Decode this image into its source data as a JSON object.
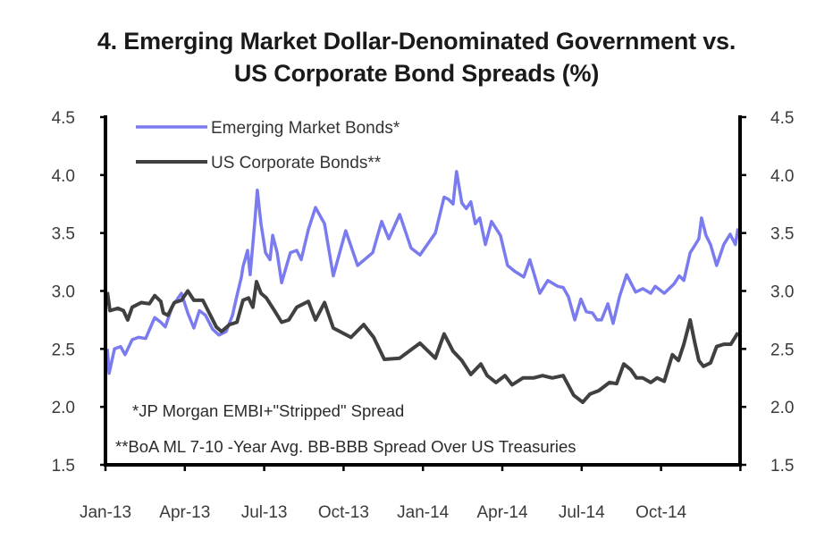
{
  "chart_data": {
    "type": "line",
    "title": "4. Emerging Market Dollar-Denominated Government vs.\nUS Corporate Bond Spreads (%)",
    "title_lines": [
      "4. Emerging Market Dollar-Denominated Government vs.",
      "US Corporate Bond Spreads (%)"
    ],
    "xlabel": "",
    "ylabel": "",
    "x_unit": "months since Jan-13",
    "x_ticks": [
      0,
      3,
      6,
      9,
      12,
      15,
      18,
      21,
      24
    ],
    "x_tick_labels": [
      "Jan-13",
      "Apr-13",
      "Jul-13",
      "Oct-13",
      "Jan-14",
      "Apr-14",
      "Jul-14",
      "Oct-14",
      ""
    ],
    "xlim": [
      0,
      24
    ],
    "ylim": [
      1.5,
      4.5
    ],
    "y_ticks": [
      1.5,
      2.0,
      2.5,
      3.0,
      3.5,
      4.0,
      4.5
    ],
    "y_tick_labels": [
      "1.5",
      "2.0",
      "2.5",
      "3.0",
      "3.5",
      "4.0",
      "4.5"
    ],
    "y_right_ticks": [
      1.5,
      2.0,
      2.5,
      3.0,
      3.5,
      4.0,
      4.5
    ],
    "y_right_tick_labels": [
      "1.5",
      "2.0",
      "2.5",
      "3.0",
      "3.5",
      "4.0",
      "4.5"
    ],
    "grid": false,
    "legend_position": "top-left",
    "series": [
      {
        "name": "Emerging Market Bonds*",
        "color": "#7b7bf0",
        "x": [
          0.07,
          0.14,
          0.34,
          0.57,
          0.74,
          1.01,
          1.25,
          1.52,
          1.69,
          1.86,
          2.09,
          2.26,
          2.53,
          2.87,
          3.11,
          3.34,
          3.55,
          3.78,
          4.05,
          4.29,
          4.56,
          4.8,
          4.97,
          5.14,
          5.2,
          5.37,
          5.47,
          5.64,
          5.74,
          5.88,
          6.05,
          6.22,
          6.32,
          6.49,
          6.66,
          6.82,
          6.99,
          7.23,
          7.4,
          7.67,
          7.94,
          8.28,
          8.61,
          9.08,
          9.53,
          10.1,
          10.44,
          10.71,
          11.12,
          11.55,
          11.89,
          12.47,
          12.8,
          12.97,
          13.14,
          13.27,
          13.47,
          13.64,
          13.81,
          13.98,
          14.15,
          14.36,
          14.59,
          14.93,
          15.2,
          15.47,
          15.81,
          16.04,
          16.42,
          16.72,
          17.09,
          17.3,
          17.5,
          17.74,
          17.97,
          18.18,
          18.41,
          18.58,
          18.75,
          18.99,
          19.19,
          19.43,
          19.7,
          20.04,
          20.31,
          20.61,
          20.78,
          21.12,
          21.49,
          21.69,
          21.86,
          22.1,
          22.27,
          22.43,
          22.53,
          22.7,
          22.87,
          23.1,
          23.37,
          23.61,
          23.81,
          23.91
        ],
        "values": [
          2.5,
          2.29,
          2.5,
          2.52,
          2.45,
          2.58,
          2.6,
          2.59,
          2.68,
          2.77,
          2.73,
          2.69,
          2.87,
          2.98,
          2.81,
          2.68,
          2.83,
          2.79,
          2.67,
          2.62,
          2.65,
          2.79,
          2.96,
          3.12,
          3.21,
          3.35,
          3.14,
          3.58,
          3.87,
          3.58,
          3.33,
          3.27,
          3.48,
          3.33,
          3.07,
          3.2,
          3.33,
          3.35,
          3.27,
          3.53,
          3.72,
          3.58,
          3.13,
          3.52,
          3.22,
          3.33,
          3.6,
          3.45,
          3.66,
          3.37,
          3.31,
          3.5,
          3.81,
          3.79,
          3.75,
          4.03,
          3.76,
          3.71,
          3.77,
          3.58,
          3.63,
          3.4,
          3.6,
          3.48,
          3.22,
          3.17,
          3.12,
          3.27,
          2.98,
          3.09,
          3.04,
          3.03,
          2.95,
          2.75,
          2.93,
          2.82,
          2.81,
          2.75,
          2.75,
          2.89,
          2.72,
          2.95,
          3.14,
          2.99,
          3.02,
          2.98,
          3.04,
          2.98,
          3.06,
          3.13,
          3.09,
          3.33,
          3.39,
          3.45,
          3.63,
          3.48,
          3.4,
          3.22,
          3.4,
          3.49,
          3.4,
          3.54
        ]
      },
      {
        "name": "US Corporate Bonds**",
        "color": "#404040",
        "x": [
          0.07,
          0.17,
          0.47,
          0.68,
          0.84,
          1.01,
          1.35,
          1.66,
          1.86,
          2.09,
          2.19,
          2.36,
          2.6,
          2.87,
          3.11,
          3.34,
          3.68,
          3.88,
          4.19,
          4.39,
          4.69,
          4.97,
          5.2,
          5.41,
          5.57,
          5.71,
          5.88,
          6.08,
          6.39,
          6.66,
          6.93,
          7.23,
          7.67,
          7.94,
          8.28,
          8.61,
          9.28,
          9.76,
          10.14,
          10.54,
          11.12,
          11.89,
          12.47,
          12.8,
          13.14,
          13.47,
          13.81,
          14.19,
          14.43,
          14.76,
          15.1,
          15.37,
          15.78,
          16.18,
          16.52,
          16.89,
          17.3,
          17.7,
          18.04,
          18.31,
          18.65,
          19.05,
          19.32,
          19.59,
          19.86,
          20.07,
          20.31,
          20.61,
          20.85,
          21.12,
          21.43,
          21.66,
          21.86,
          22.1,
          22.27,
          22.43,
          22.6,
          22.87,
          23.1,
          23.37,
          23.64,
          23.91
        ],
        "values": [
          2.99,
          2.83,
          2.85,
          2.83,
          2.75,
          2.86,
          2.9,
          2.89,
          2.96,
          2.91,
          2.81,
          2.79,
          2.9,
          2.92,
          3.0,
          2.92,
          2.92,
          2.83,
          2.69,
          2.65,
          2.71,
          2.73,
          2.92,
          2.94,
          2.86,
          3.08,
          2.98,
          2.94,
          2.83,
          2.73,
          2.75,
          2.86,
          2.91,
          2.75,
          2.9,
          2.68,
          2.6,
          2.71,
          2.6,
          2.41,
          2.42,
          2.55,
          2.42,
          2.63,
          2.48,
          2.4,
          2.28,
          2.37,
          2.27,
          2.21,
          2.27,
          2.19,
          2.25,
          2.25,
          2.27,
          2.25,
          2.27,
          2.1,
          2.04,
          2.11,
          2.14,
          2.21,
          2.2,
          2.37,
          2.32,
          2.25,
          2.25,
          2.21,
          2.25,
          2.22,
          2.45,
          2.4,
          2.54,
          2.75,
          2.56,
          2.4,
          2.35,
          2.38,
          2.52,
          2.54,
          2.54,
          2.64
        ]
      }
    ],
    "legend": [
      "Emerging Market Bonds*",
      "US Corporate Bonds**"
    ],
    "annotations": [
      "*JP Morgan EMBI+\"Stripped\" Spread",
      "**BoA ML 7-10 -Year Avg. BB-BBB Spread Over US Treasuries"
    ]
  }
}
